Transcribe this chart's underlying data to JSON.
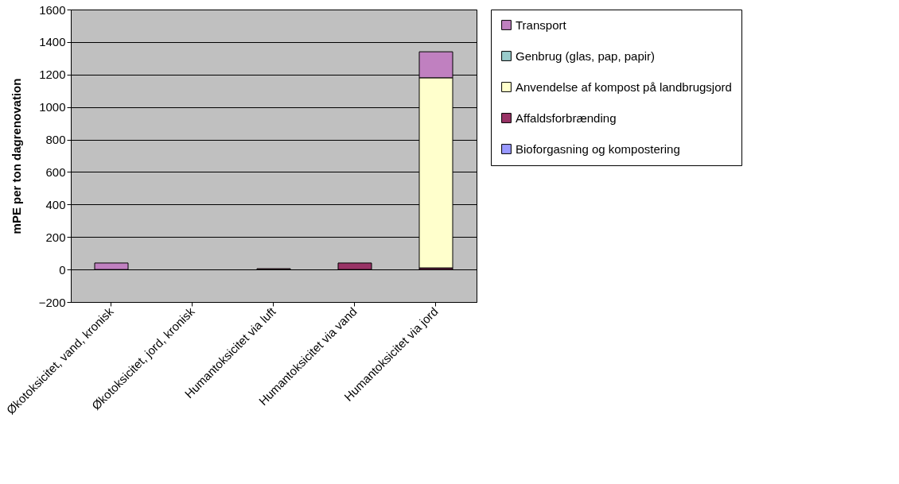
{
  "chart_data": {
    "type": "bar",
    "stacked": true,
    "ylabel": "mPE per ton dagrenovation",
    "categories": [
      "Økotoksicitet, vand, kronisk",
      "Økotoksicitet, jord, kronisk",
      "Humantoksicitet via luft",
      "Humantoksicitet via vand",
      "Humantoksicitet via jord"
    ],
    "series": [
      {
        "name": "Bioforgasning og kompostering",
        "color": "#9999ff",
        "values": [
          null,
          null,
          null,
          null,
          null
        ]
      },
      {
        "name": "Affaldsforbrænding",
        "color": "#993366",
        "values": [
          null,
          null,
          5,
          40,
          10
        ]
      },
      {
        "name": "Anvendelse af kompost på landbrugsjord",
        "color": "#ffffcc",
        "values": [
          null,
          null,
          null,
          null,
          1170
        ]
      },
      {
        "name": "Genbrug (glas, pap, papir)",
        "color": "#99cccc",
        "values": [
          null,
          null,
          null,
          null,
          null
        ]
      },
      {
        "name": "Transport",
        "color": "#c080c0",
        "values": [
          40,
          null,
          null,
          null,
          160
        ]
      }
    ],
    "ylim": [
      -200,
      1600
    ],
    "yticks": [
      -200,
      0,
      200,
      400,
      600,
      800,
      1000,
      1200,
      1400,
      1600
    ],
    "grid": "y",
    "legend": "right"
  }
}
